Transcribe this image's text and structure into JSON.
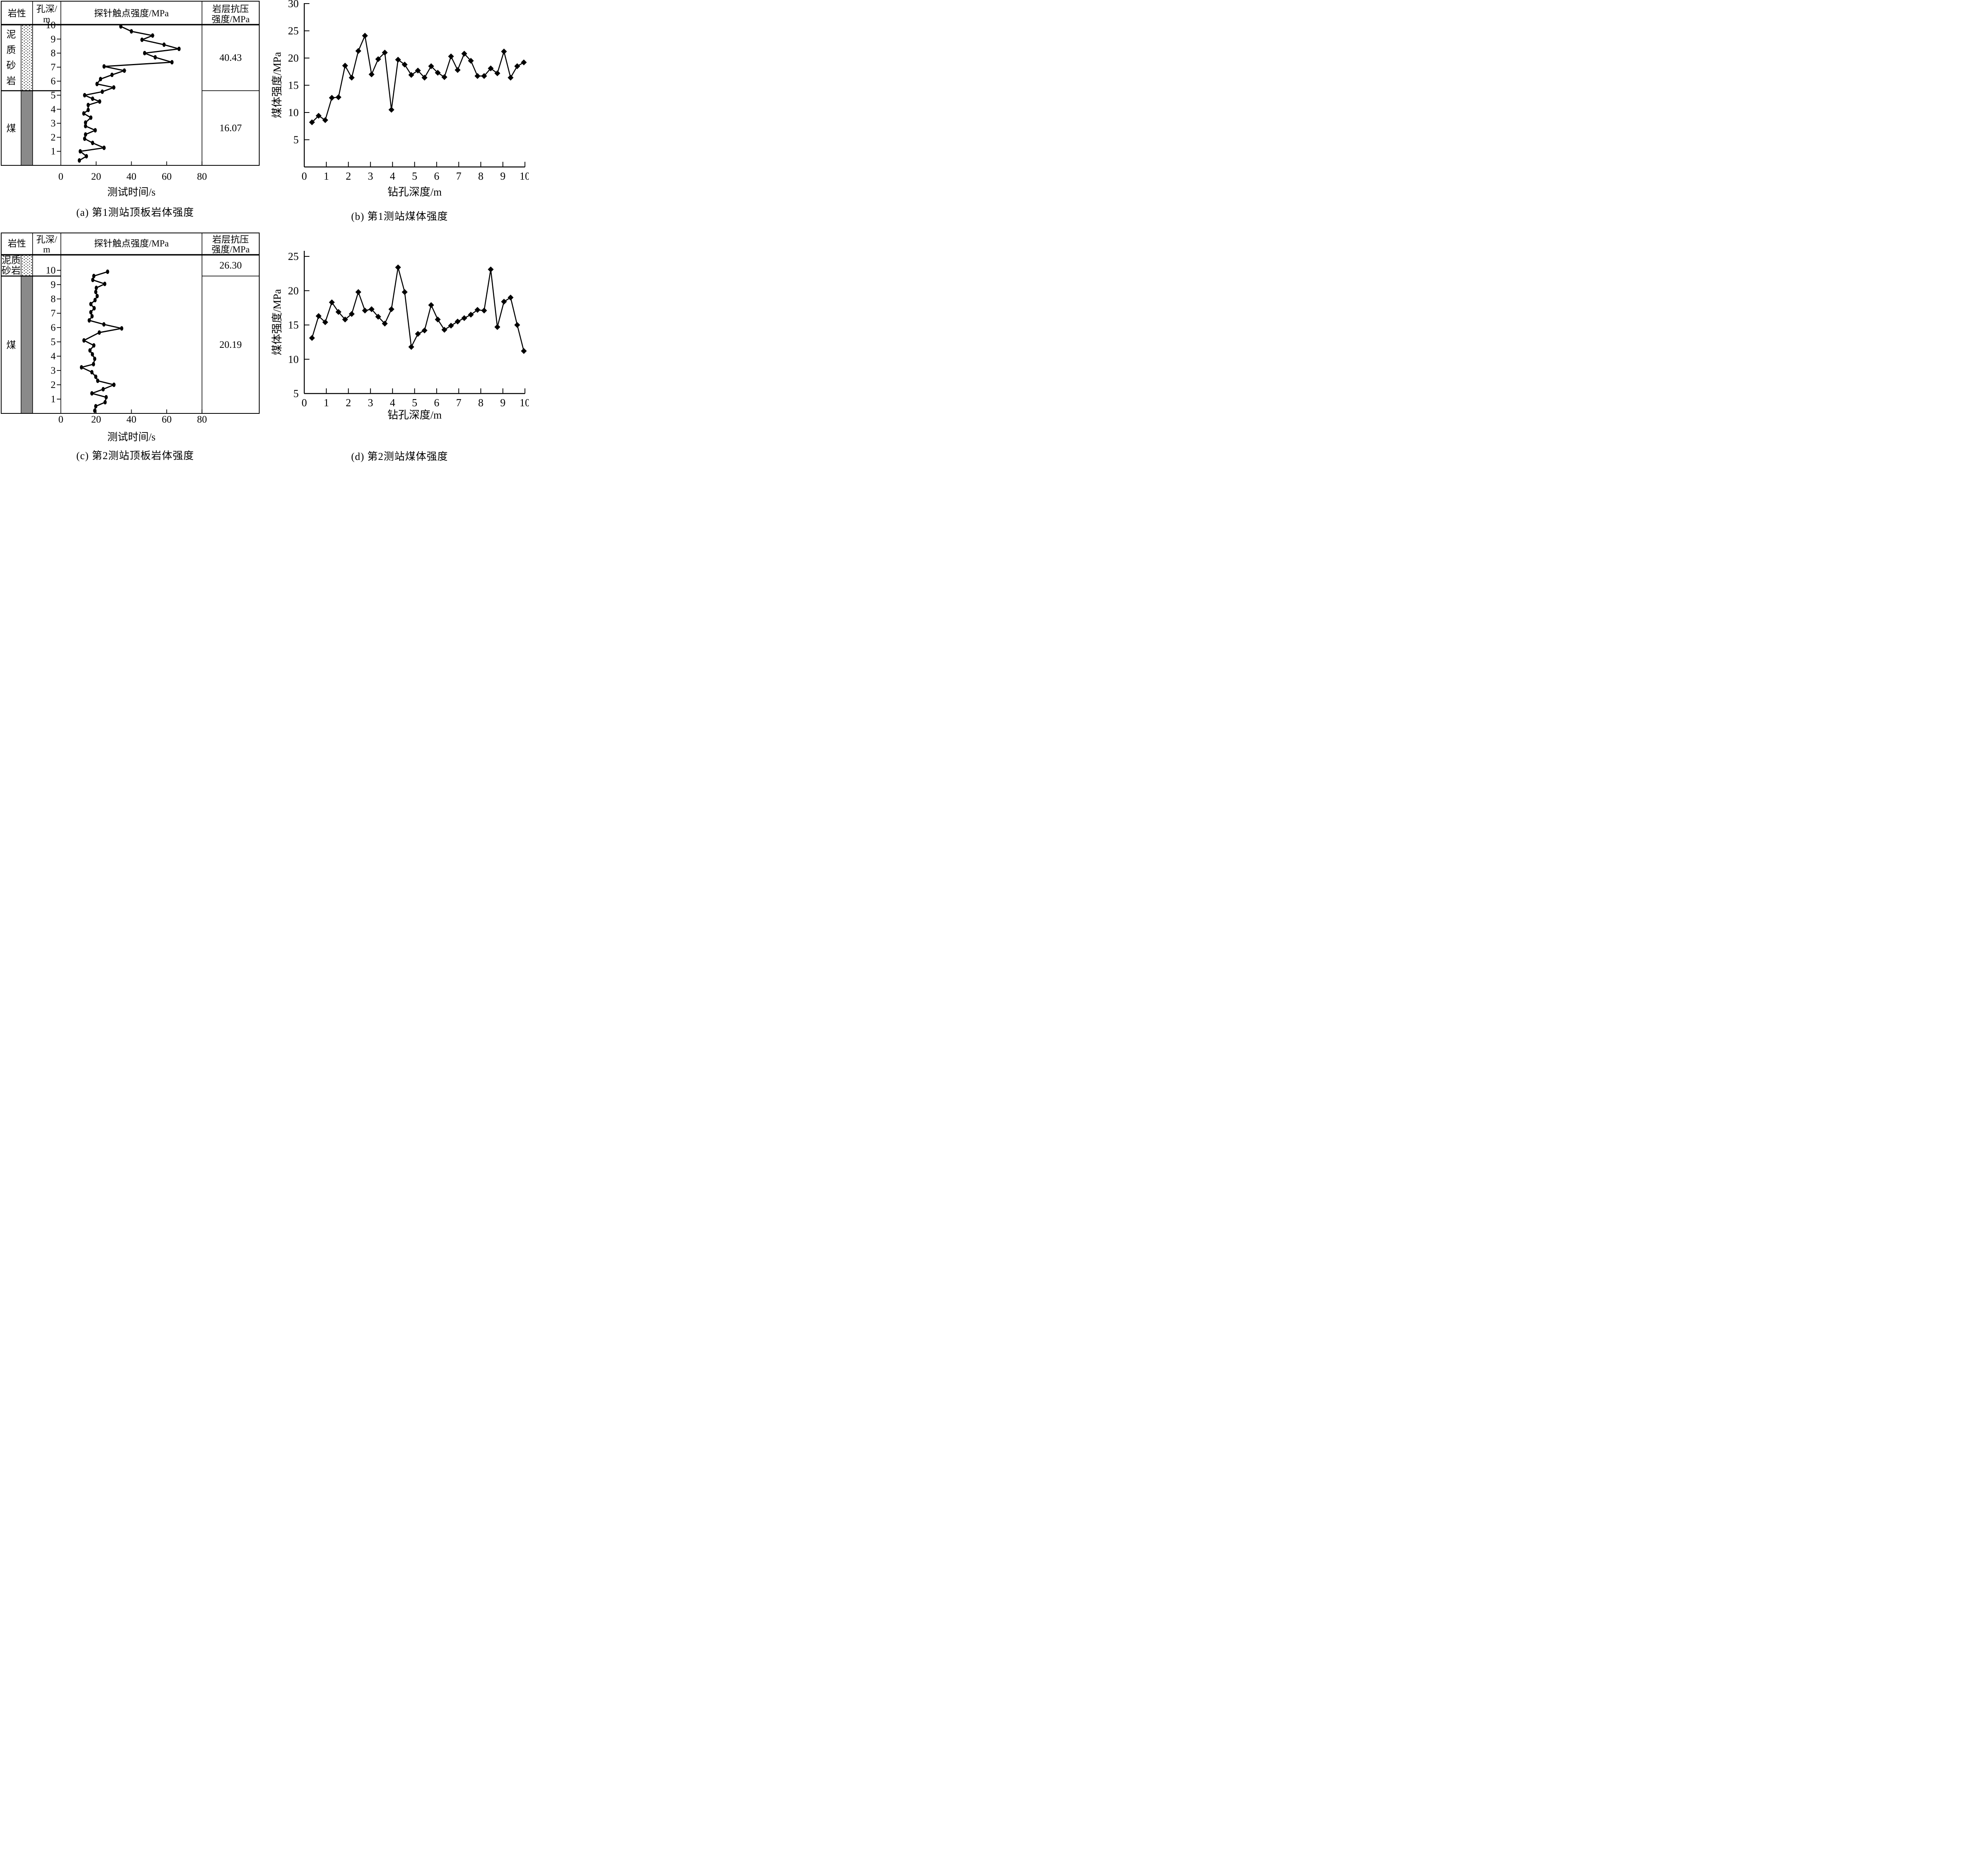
{
  "figure_title": "",
  "captions": {
    "a": "(a) 第1测站顶板岩体强度",
    "b": "(b) 第1测站煤体强度",
    "c": "(c) 第2测站顶板岩体强度",
    "d": "(d) 第2测站煤体强度"
  },
  "colors": {
    "line": "#000000",
    "coal_fill": "#8a8a8a",
    "background": "#ffffff"
  },
  "chart_data": [
    {
      "id": "a",
      "type": "line",
      "title": "(a) 第1测站顶板岩体强度",
      "layout": "borehole-log-table",
      "headers": [
        "岩性",
        "孔深/m",
        "探针触点强度/MPa",
        "岩层抗压强度/MPa"
      ],
      "xlabel": "测试时间/s",
      "xlim": [
        0,
        80
      ],
      "x_ticks": [
        0,
        20,
        40,
        60,
        80
      ],
      "depth_axis": {
        "unit": "m",
        "ticks": [
          1,
          2,
          3,
          4,
          5,
          6,
          7,
          8,
          9,
          10
        ],
        "top": 10.05,
        "bottom": 0
      },
      "lithology": [
        {
          "name": "泥质砂岩",
          "label_lines": [
            "泥",
            "质",
            "砂",
            "岩"
          ],
          "pattern": "dotted",
          "depth_from": 10.05,
          "depth_to": 5.32,
          "compressive_strength_mpa": "40.43"
        },
        {
          "name": "煤",
          "label_lines": [
            "煤"
          ],
          "pattern": "solid-gray",
          "depth_from": 5.32,
          "depth_to": 0,
          "compressive_strength_mpa": "16.07"
        }
      ],
      "series_name": "探针触点强度",
      "marker": "dot",
      "time_s": [
        34,
        40,
        52,
        46,
        58.5,
        67,
        47.5,
        53.5,
        63,
        24.5,
        36,
        29,
        22.5,
        20.5,
        30,
        23.5,
        13.5,
        18,
        22,
        15.5,
        15.5,
        13,
        17,
        14,
        14,
        19.5,
        14,
        13.5,
        18,
        24.5,
        11,
        14.5,
        10.5
      ],
      "depth_m": [
        9.9,
        9.55,
        9.25,
        8.95,
        8.6,
        8.3,
        8.0,
        7.7,
        7.35,
        7.05,
        6.75,
        6.45,
        6.15,
        5.8,
        5.55,
        5.25,
        5.0,
        4.75,
        4.55,
        4.3,
        3.95,
        3.7,
        3.4,
        3.05,
        2.8,
        2.5,
        2.2,
        1.9,
        1.6,
        1.25,
        1.0,
        0.65,
        0.35
      ]
    },
    {
      "id": "b",
      "type": "line",
      "title": "(b) 第1测站煤体强度",
      "xlabel": "钻孔深度/m",
      "ylabel": "煤体强度/MPa",
      "xlim": [
        0,
        10
      ],
      "ylim": [
        0,
        30
      ],
      "x_ticks": [
        0,
        1,
        2,
        3,
        4,
        5,
        6,
        7,
        8,
        9,
        10
      ],
      "y_ticks": [
        5,
        10,
        15,
        20,
        25,
        30
      ],
      "marker": "diamond",
      "x": [
        0.35,
        0.65,
        0.95,
        1.25,
        1.55,
        1.85,
        2.15,
        2.45,
        2.75,
        3.05,
        3.35,
        3.65,
        3.95,
        4.25,
        4.55,
        4.85,
        5.15,
        5.45,
        5.75,
        6.05,
        6.35,
        6.65,
        6.95,
        7.25,
        7.55,
        7.85,
        8.15,
        8.45,
        8.75,
        9.05,
        9.35,
        9.65,
        9.95
      ],
      "y": [
        8.2,
        9.4,
        8.6,
        12.7,
        12.8,
        18.6,
        16.4,
        21.3,
        24.1,
        17.0,
        19.8,
        21.0,
        10.5,
        19.7,
        18.8,
        16.9,
        17.7,
        16.4,
        18.5,
        17.3,
        16.5,
        20.3,
        17.8,
        20.8,
        19.5,
        16.7,
        16.7,
        18.1,
        17.2,
        21.2,
        16.4,
        18.5,
        19.2
      ]
    },
    {
      "id": "c",
      "type": "line",
      "title": "(c) 第2测站顶板岩体强度",
      "layout": "borehole-log-table",
      "headers": [
        "岩性",
        "孔深/m",
        "探针触点强度/MPa",
        "岩层抗压强度/MPa"
      ],
      "xlabel": "测试时间/s",
      "xlim": [
        0,
        80
      ],
      "x_ticks": [
        0,
        20,
        40,
        60,
        80
      ],
      "depth_axis": {
        "unit": "m",
        "ticks": [
          1,
          2,
          3,
          4,
          5,
          6,
          7,
          8,
          9,
          10
        ],
        "top": 11.08,
        "bottom": 0
      },
      "lithology": [
        {
          "name": "泥质砂岩",
          "label_lines": [
            "泥质",
            "砂岩"
          ],
          "pattern": "dotted",
          "depth_from": 11.08,
          "depth_to": 9.6,
          "compressive_strength_mpa": "26.30"
        },
        {
          "name": "煤",
          "label_lines": [
            "煤"
          ],
          "pattern": "solid-gray",
          "depth_from": 9.6,
          "depth_to": 0,
          "compressive_strength_mpa": "20.19"
        }
      ],
      "series_name": "探针触点强度",
      "marker": "dot",
      "time_s": [
        26.5,
        18.7,
        18.1,
        24.9,
        20.1,
        19.8,
        20.6,
        19.4,
        17,
        18.9,
        17,
        17.7,
        16.1,
        24.4,
        34.5,
        21.8,
        13.1,
        18.7,
        16.5,
        17.9,
        19.2,
        18.5,
        11.7,
        17.6,
        19.8,
        20.9,
        30.1,
        24,
        17.6,
        25.7,
        25.1,
        19.8,
        19.2
      ],
      "depth_m": [
        9.9,
        9.6,
        9.33,
        9.05,
        8.77,
        8.49,
        8.2,
        7.92,
        7.64,
        7.35,
        7.07,
        6.79,
        6.5,
        6.22,
        5.94,
        5.65,
        5.1,
        4.75,
        4.4,
        4.13,
        3.81,
        3.44,
        3.22,
        2.88,
        2.56,
        2.28,
        2.0,
        1.69,
        1.4,
        1.13,
        0.78,
        0.5,
        0.19
      ]
    },
    {
      "id": "d",
      "type": "line",
      "title": "(d) 第2测站煤体强度",
      "xlabel": "钻孔深度/m",
      "ylabel": "煤体强度/MPa",
      "xlim": [
        0,
        10
      ],
      "ylim": [
        5,
        25
      ],
      "x_ticks": [
        0,
        1,
        2,
        3,
        4,
        5,
        6,
        7,
        8,
        9,
        10
      ],
      "y_ticks": [
        5,
        10,
        15,
        20,
        25
      ],
      "marker": "diamond",
      "x": [
        0.35,
        0.65,
        0.95,
        1.25,
        1.55,
        1.85,
        2.15,
        2.45,
        2.75,
        3.05,
        3.35,
        3.65,
        3.95,
        4.25,
        4.55,
        4.85,
        5.15,
        5.45,
        5.75,
        6.05,
        6.35,
        6.65,
        6.95,
        7.25,
        7.55,
        7.85,
        8.15,
        8.45,
        8.75,
        9.05,
        9.35,
        9.65,
        9.95
      ],
      "y": [
        13.1,
        16.3,
        15.4,
        18.3,
        16.9,
        15.8,
        16.6,
        19.8,
        17.1,
        17.3,
        16.2,
        15.2,
        17.3,
        23.4,
        19.8,
        11.8,
        13.7,
        14.2,
        17.9,
        15.8,
        14.3,
        14.9,
        15.5,
        16.0,
        16.5,
        17.2,
        17.1,
        23.1,
        14.7,
        18.4,
        19.0,
        15.0,
        11.2
      ]
    }
  ]
}
